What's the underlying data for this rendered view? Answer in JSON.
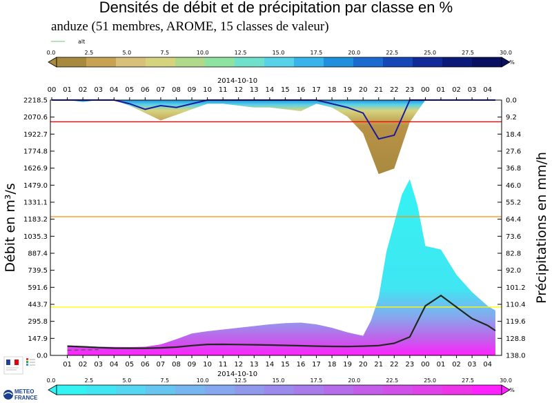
{
  "header": {
    "title": "Densités de débit et de précipitation par classe en %",
    "subtitle": "anduze (51 membres, AROME, 15 classes de valeur)",
    "legend_alt": "alt"
  },
  "colorbars": {
    "ticks": [
      "0.0",
      "2.5",
      "5.0",
      "7.5",
      "10.0",
      "12.5",
      "15.0",
      "17.5",
      "20.0",
      "22.5",
      "25.0",
      "27.5",
      "30.0"
    ],
    "unit": "%",
    "precip_colors": [
      "#a88a3f",
      "#c8a253",
      "#d9c07a",
      "#d6d37e",
      "#b0d98c",
      "#8ee3a3",
      "#6fe0c9",
      "#57d2e9",
      "#39b3ec",
      "#1f8fde",
      "#1a6ad0",
      "#1547b7",
      "#102a98",
      "#0b1a78",
      "#0a1060"
    ],
    "flow_colors": [
      "#33f3f3",
      "#40e6f2",
      "#55d6f1",
      "#67c6f0",
      "#78b6ef",
      "#86a8ee",
      "#9199ed",
      "#9c8aec",
      "#a87ceb",
      "#b56deb",
      "#c35eea",
      "#d250ea",
      "#e042e9",
      "#ee34e8",
      "#ff22ff"
    ]
  },
  "chart_data": {
    "type": "area",
    "date_label": "2014-10-10",
    "top_hours": [
      "00",
      "01",
      "02",
      "03",
      "04",
      "05",
      "06",
      "07",
      "08",
      "09",
      "10",
      "11",
      "12",
      "13",
      "14",
      "15",
      "16",
      "17",
      "18",
      "19",
      "20",
      "21",
      "22",
      "23",
      "00",
      "01",
      "02",
      "03",
      "04"
    ],
    "bottom_hours": [
      "01",
      "02",
      "03",
      "04",
      "05",
      "06",
      "07",
      "08",
      "09",
      "10",
      "11",
      "12",
      "13",
      "14",
      "15",
      "16",
      "17",
      "18",
      "19",
      "20",
      "21",
      "22",
      "23",
      "00",
      "01",
      "02",
      "03",
      "04"
    ],
    "ylabel_left": "Débit en m³/s",
    "ylabel_right": "Précipitations en mm/h",
    "left_ticks": [
      "0.0",
      "147.9",
      "295.8",
      "443.7",
      "591.6",
      "739.5",
      "887.4",
      "1035.3",
      "1183.2",
      "1331.1",
      "1479.0",
      "1626.9",
      "1774.8",
      "1922.7",
      "2070.6",
      "2218.5"
    ],
    "right_ticks": [
      "138.0",
      "128.8",
      "119.6",
      "110.4",
      "101.2",
      "92.0",
      "82.8",
      "73.6",
      "64.4",
      "55.2",
      "46.0",
      "36.8",
      "27.6",
      "18.4",
      "9.2",
      "0.0"
    ],
    "ylim_flow": [
      0,
      2218.5
    ],
    "ylim_precip": [
      138,
      0
    ],
    "x_range_hours": [
      0,
      28.5
    ],
    "thresholds": [
      {
        "value": 2030,
        "color": "#ff0000"
      },
      {
        "value": 1205,
        "color": "#ff8c00"
      },
      {
        "value": 420,
        "color": "#ffff00"
      }
    ],
    "flow_median": {
      "x": [
        1,
        2,
        3,
        4,
        5,
        6,
        7,
        8,
        9,
        10,
        11,
        12,
        13,
        14,
        15,
        16,
        17,
        18,
        19,
        20,
        21,
        22,
        23,
        24,
        25,
        26,
        27,
        28,
        28.5
      ],
      "y": [
        80,
        75,
        68,
        63,
        62,
        62,
        65,
        72,
        85,
        95,
        96,
        94,
        92,
        90,
        87,
        84,
        80,
        78,
        77,
        80,
        85,
        105,
        160,
        430,
        520,
        420,
        320,
        260,
        215
      ]
    },
    "flow_min": {
      "x": [
        1,
        1.5,
        2,
        2.5,
        3
      ],
      "y": [
        45,
        45,
        48,
        48,
        50
      ]
    },
    "flow_envelope": {
      "x": [
        1,
        3,
        5,
        6,
        7,
        8,
        9,
        10,
        11,
        12,
        13,
        14,
        15,
        16,
        17,
        18,
        19,
        20,
        20.5,
        21,
        21.5,
        22,
        22.5,
        23,
        23.5,
        24,
        25,
        26,
        27,
        28,
        28.5
      ],
      "y": [
        85,
        75,
        72,
        75,
        95,
        140,
        190,
        210,
        225,
        240,
        255,
        270,
        280,
        285,
        270,
        240,
        200,
        170,
        300,
        500,
        900,
        1150,
        1400,
        1530,
        1300,
        950,
        920,
        700,
        550,
        430,
        390
      ]
    },
    "precip_median": {
      "x": [
        0,
        4,
        5,
        6,
        7,
        8,
        9,
        10,
        17,
        18,
        19,
        20,
        21,
        22,
        23,
        24,
        28.5
      ],
      "y": [
        0,
        0,
        2,
        5,
        3,
        4,
        2,
        0,
        0,
        2,
        4,
        7,
        21,
        19,
        0,
        0,
        0
      ]
    },
    "precip_envelope": {
      "x": [
        0,
        1,
        2,
        3,
        4,
        5,
        6,
        7,
        8,
        9,
        10,
        11,
        12,
        13,
        14,
        15,
        16,
        17,
        18,
        19,
        20,
        21,
        22,
        23,
        24,
        28.5
      ],
      "y": [
        0,
        0,
        1,
        0,
        0,
        3,
        7,
        11,
        8,
        5,
        2,
        2,
        3,
        4,
        4,
        5,
        6,
        2,
        4,
        9,
        18,
        40,
        37,
        12,
        0,
        0
      ]
    }
  }
}
